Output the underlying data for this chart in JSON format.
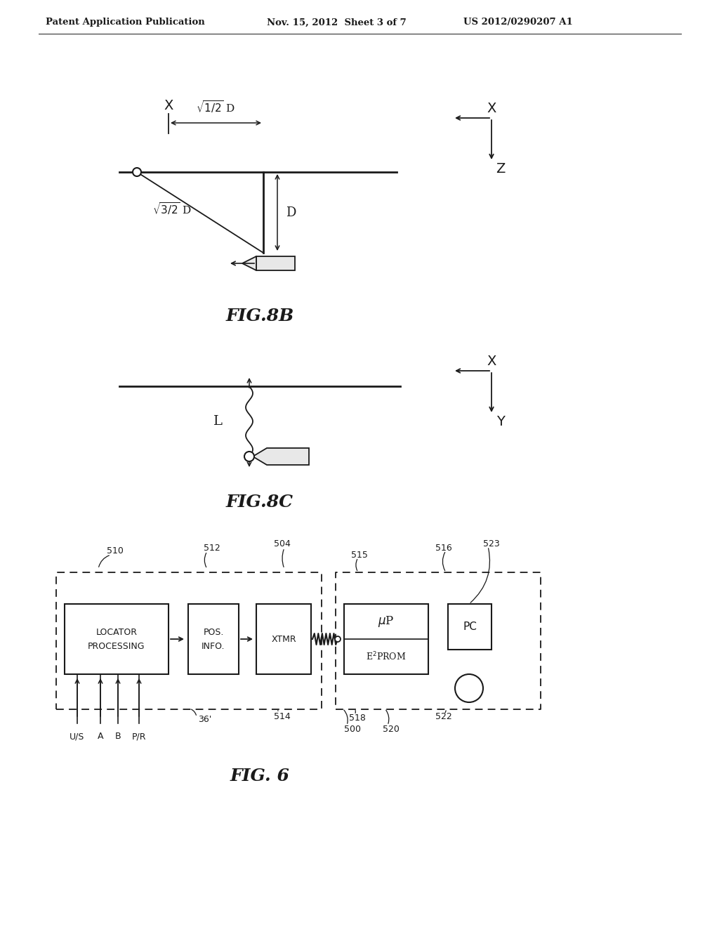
{
  "header_left": "Patent Application Publication",
  "header_mid": "Nov. 15, 2012  Sheet 3 of 7",
  "header_right": "US 2012/0290207 A1",
  "fig8b_label": "FIG.8B",
  "fig8c_label": "FIG.8C",
  "fig6_label": "FIG. 6",
  "bg_color": "#ffffff",
  "line_color": "#1a1a1a"
}
